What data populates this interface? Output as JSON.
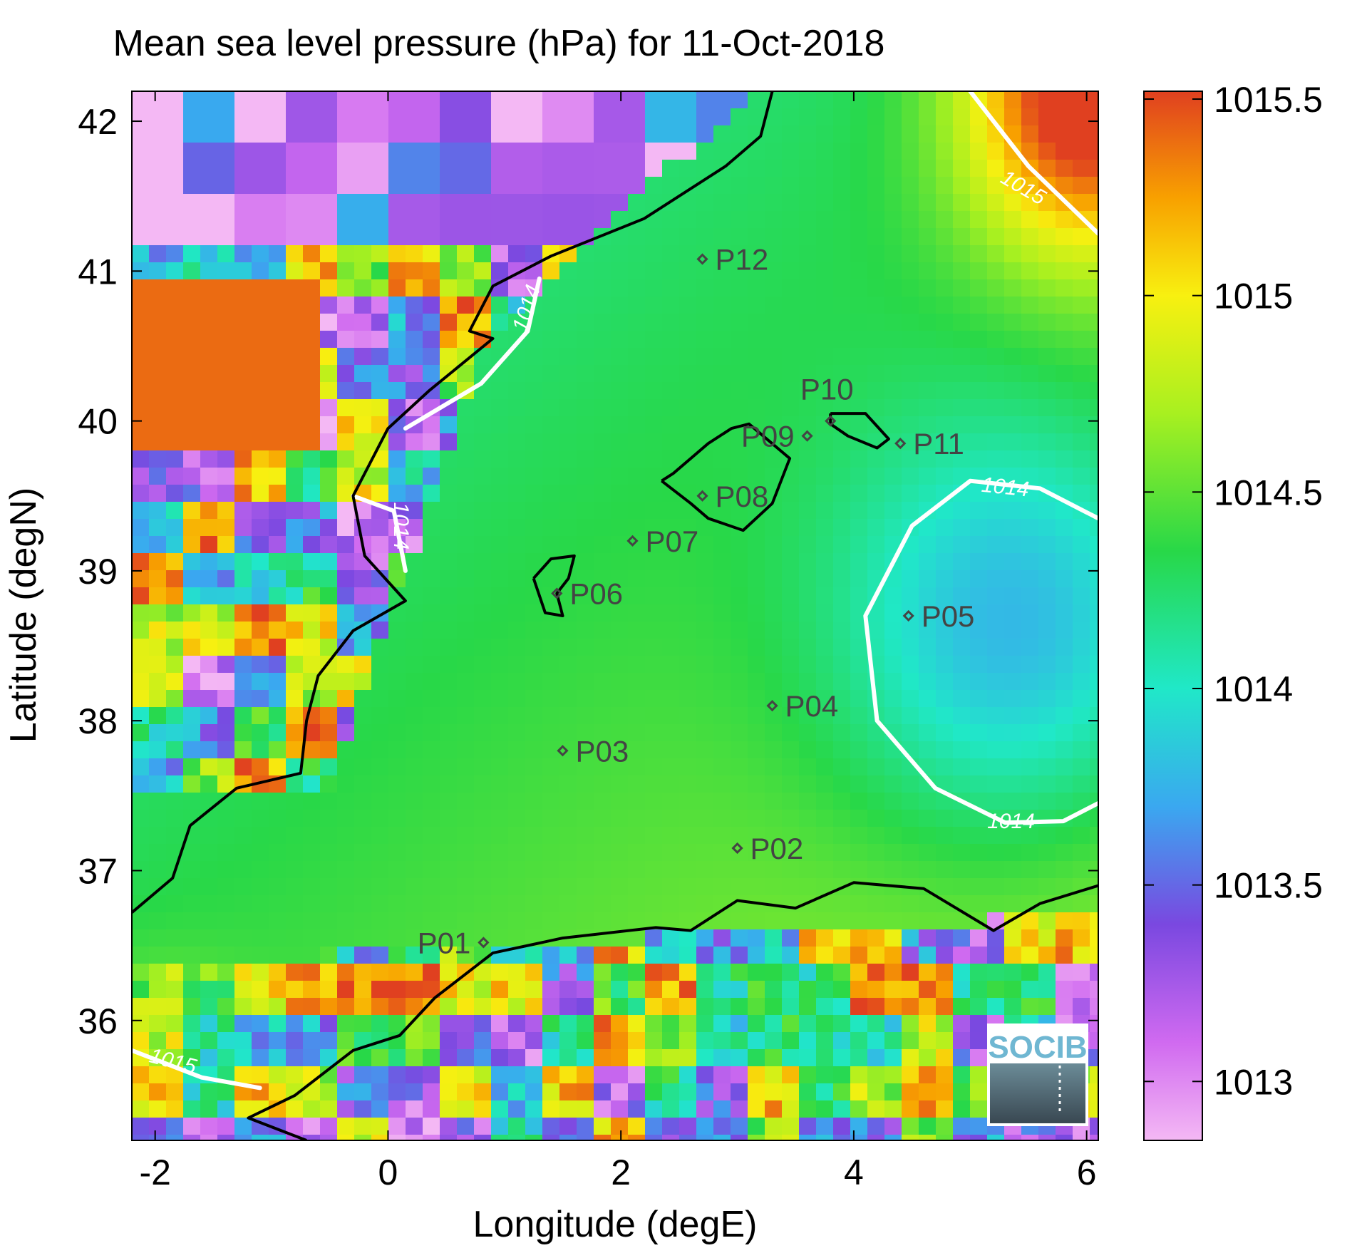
{
  "chart_data": {
    "type": "heatmap",
    "title": "Mean sea level pressure (hPa) for 11-Oct-2018",
    "xlabel": "Longitude (degE)",
    "ylabel": "Latitude (degN)",
    "xlim": [
      -2.2,
      6.1
    ],
    "ylim": [
      35.2,
      42.2
    ],
    "x_ticks": [
      {
        "value": -2,
        "label": "-2"
      },
      {
        "value": 0,
        "label": "0"
      },
      {
        "value": 2,
        "label": "2"
      },
      {
        "value": 4,
        "label": "4"
      },
      {
        "value": 6,
        "label": "6"
      }
    ],
    "y_ticks": [
      {
        "value": 36,
        "label": "36"
      },
      {
        "value": 37,
        "label": "37"
      },
      {
        "value": 38,
        "label": "38"
      },
      {
        "value": 39,
        "label": "39"
      },
      {
        "value": 40,
        "label": "40"
      },
      {
        "value": 41,
        "label": "41"
      },
      {
        "value": 42,
        "label": "42"
      }
    ],
    "colorbar": {
      "range": [
        1012.85,
        1015.52
      ],
      "ticks": [
        {
          "value": 1013,
          "label": "1013"
        },
        {
          "value": 1013.5,
          "label": "1013.5"
        },
        {
          "value": 1014,
          "label": "1014"
        },
        {
          "value": 1014.5,
          "label": "1014.5"
        },
        {
          "value": 1015,
          "label": "1015"
        },
        {
          "value": 1015.5,
          "label": "1015.5"
        }
      ],
      "stops": [
        {
          "value": 1012.85,
          "color": "#f4b8f4"
        },
        {
          "value": 1013.1,
          "color": "#d06af0"
        },
        {
          "value": 1013.4,
          "color": "#7a48e0"
        },
        {
          "value": 1013.7,
          "color": "#3aa8f0"
        },
        {
          "value": 1014.0,
          "color": "#20e8c8"
        },
        {
          "value": 1014.35,
          "color": "#28d848"
        },
        {
          "value": 1014.7,
          "color": "#a8f020"
        },
        {
          "value": 1015.0,
          "color": "#f8f010"
        },
        {
          "value": 1015.25,
          "color": "#f8a000"
        },
        {
          "value": 1015.52,
          "color": "#e04020"
        }
      ]
    },
    "contours": [
      {
        "label": "1014",
        "label_lon": 1.2,
        "label_lat": 40.75,
        "label_angle": -72
      },
      {
        "label": "1014",
        "label_lon": 0.1,
        "label_lat": 39.3,
        "label_angle": 90
      },
      {
        "label": "1014",
        "label_lon": 5.3,
        "label_lat": 39.55,
        "label_angle": 6
      },
      {
        "label": "1014",
        "label_lon": 5.35,
        "label_lat": 37.32,
        "label_angle": 0
      },
      {
        "label": "1015",
        "label_lon": 5.45,
        "label_lat": 41.55,
        "label_angle": 30
      },
      {
        "label": "1015",
        "label_lon": -1.85,
        "label_lat": 35.72,
        "label_angle": 15
      }
    ],
    "stations": [
      {
        "name": "P01",
        "lon": 0.82,
        "lat": 36.52,
        "label_side": "left"
      },
      {
        "name": "P02",
        "lon": 3.0,
        "lat": 37.15,
        "label_side": "right"
      },
      {
        "name": "P03",
        "lon": 1.5,
        "lat": 37.8,
        "label_side": "right"
      },
      {
        "name": "P04",
        "lon": 3.3,
        "lat": 38.1,
        "label_side": "right"
      },
      {
        "name": "P05",
        "lon": 4.47,
        "lat": 38.7,
        "label_side": "right"
      },
      {
        "name": "P06",
        "lon": 1.45,
        "lat": 38.85,
        "label_side": "right"
      },
      {
        "name": "P07",
        "lon": 2.1,
        "lat": 39.2,
        "label_side": "right"
      },
      {
        "name": "P08",
        "lon": 2.7,
        "lat": 39.5,
        "label_side": "right"
      },
      {
        "name": "P09",
        "lon": 3.6,
        "lat": 39.9,
        "label_side": "left"
      },
      {
        "name": "P10",
        "lon": 3.8,
        "lat": 40.0,
        "label_side": "above"
      },
      {
        "name": "P11",
        "lon": 4.4,
        "lat": 39.85,
        "label_side": "right"
      },
      {
        "name": "P12",
        "lon": 2.7,
        "lat": 41.08,
        "label_side": "right"
      }
    ],
    "grid": false,
    "legend": "none"
  },
  "logo": {
    "text": "SOCIB"
  },
  "colors": {
    "coastline": "#000000",
    "contour": "#ffffff",
    "station": "#444444"
  }
}
